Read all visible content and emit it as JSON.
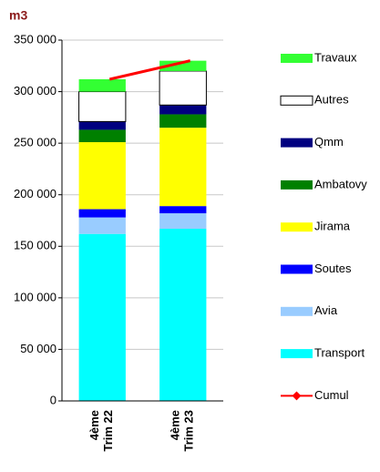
{
  "chart_data": {
    "type": "stacked_bar",
    "title": "m3",
    "categories": [
      [
        "4ème",
        "Trim 22"
      ],
      [
        "4ème",
        "Trim 23"
      ]
    ],
    "series": [
      {
        "name": "Travaux",
        "color": "#33ff33",
        "values": [
          12000,
          10000
        ]
      },
      {
        "name": "Autres",
        "color": "#ffffff",
        "values": [
          29000,
          33000
        ]
      },
      {
        "name": "Qmm",
        "color": "#000080",
        "values": [
          8000,
          9000
        ]
      },
      {
        "name": "Ambatovy",
        "color": "#008000",
        "values": [
          12000,
          13000
        ]
      },
      {
        "name": "Jirama",
        "color": "#ffff00",
        "values": [
          65000,
          76000
        ]
      },
      {
        "name": "Soutes",
        "color": "#0000ff",
        "values": [
          8000,
          7000
        ]
      },
      {
        "name": "Avia",
        "color": "#99ccff",
        "values": [
          16000,
          15000
        ]
      },
      {
        "name": "Transport",
        "color": "#00ffff",
        "values": [
          162000,
          167000
        ]
      }
    ],
    "line_series": {
      "name": "Cumul",
      "color": "#ff0000",
      "values": [
        312000,
        330000
      ]
    },
    "ylim": [
      0,
      350000
    ],
    "yticks": [
      0,
      {
        "value": 50000,
        "label": "50 000"
      },
      {
        "value": 100000,
        "label": "100 000"
      },
      {
        "value": 150000,
        "label": "150 000"
      },
      {
        "value": 200000,
        "label": "200 000"
      },
      {
        "value": 250000,
        "label": "250 000"
      },
      {
        "value": 300000,
        "label": "300 000"
      },
      {
        "value": 350000,
        "label": "350 000"
      }
    ],
    "grid": true,
    "legend": "right"
  }
}
